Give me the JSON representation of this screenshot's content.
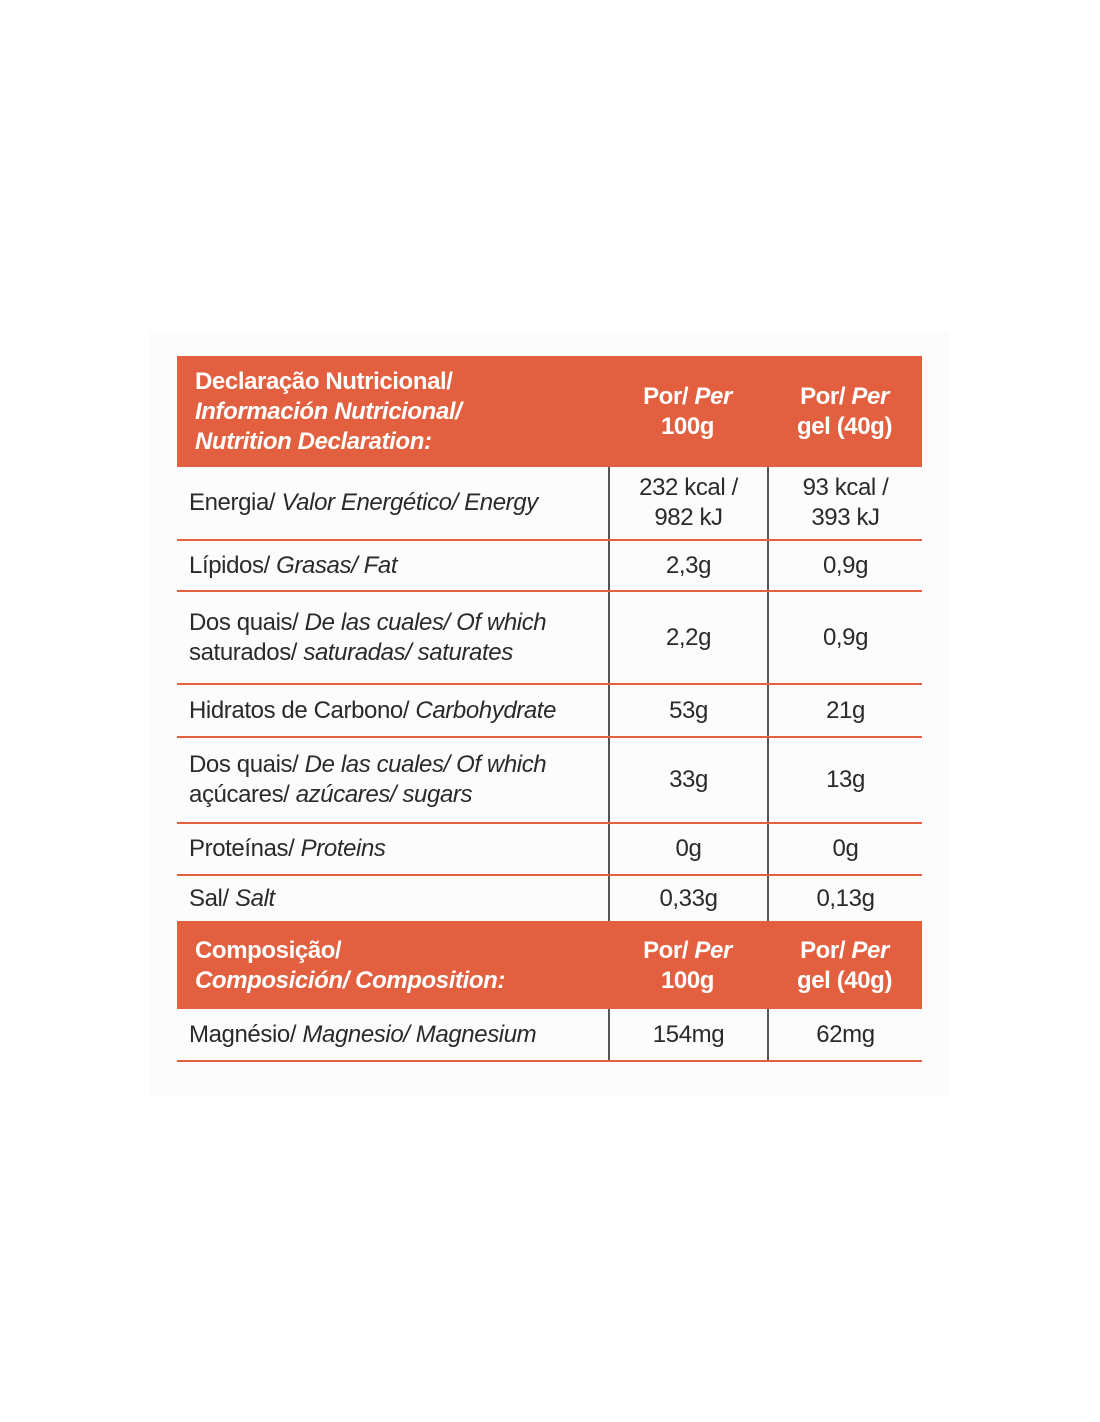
{
  "table": {
    "sections": [
      {
        "header": {
          "label": [
            [
              {
                "text": "Declaração Nutricional/",
                "italic": false
              }
            ],
            [
              {
                "text": "Información Nutricional/",
                "italic": true
              }
            ],
            [
              {
                "text": "Nutrition Declaration:",
                "italic": true
              }
            ]
          ],
          "columns": [
            [
              [
                {
                  "text": "Por/ ",
                  "italic": false
                },
                {
                  "text": "Per",
                  "italic": true
                }
              ],
              [
                {
                  "text": "100g",
                  "italic": false
                }
              ]
            ],
            [
              [
                {
                  "text": "Por/ ",
                  "italic": false
                },
                {
                  "text": "Per",
                  "italic": true
                }
              ],
              [
                {
                  "text": "gel (40g)",
                  "italic": false
                }
              ]
            ]
          ]
        },
        "rows": [
          {
            "label": [
              [
                {
                  "text": "Energia/ ",
                  "italic": false
                },
                {
                  "text": "Valor Energético/ Energy",
                  "italic": true
                }
              ]
            ],
            "values": [
              [
                "232 kcal /",
                "982 kJ"
              ],
              [
                "93 kcal /",
                "393 kJ"
              ]
            ]
          },
          {
            "label": [
              [
                {
                  "text": "Lípidos/ ",
                  "italic": false
                },
                {
                  "text": "Grasas/ Fat",
                  "italic": true
                }
              ]
            ],
            "values": [
              [
                "2,3g"
              ],
              [
                "0,9g"
              ]
            ]
          },
          {
            "label": [
              [
                {
                  "text": "Dos quais/ ",
                  "italic": false
                },
                {
                  "text": "De las cuales/ Of which",
                  "italic": true
                }
              ],
              [
                {
                  "text": "saturados/ ",
                  "italic": false
                },
                {
                  "text": "saturadas/ saturates",
                  "italic": true
                }
              ]
            ],
            "values": [
              [
                "2,2g"
              ],
              [
                "0,9g"
              ]
            ]
          },
          {
            "label": [
              [
                {
                  "text": "Hidratos de Carbono/ ",
                  "italic": false
                },
                {
                  "text": "Carbohydrate",
                  "italic": true
                }
              ]
            ],
            "values": [
              [
                "53g"
              ],
              [
                "21g"
              ]
            ]
          },
          {
            "label": [
              [
                {
                  "text": "Dos quais/ ",
                  "italic": false
                },
                {
                  "text": "De las cuales/ Of which",
                  "italic": true
                }
              ],
              [
                {
                  "text": "açúcares/ ",
                  "italic": false
                },
                {
                  "text": "azúcares/ sugars",
                  "italic": true
                }
              ]
            ],
            "values": [
              [
                "33g"
              ],
              [
                "13g"
              ]
            ]
          },
          {
            "label": [
              [
                {
                  "text": "Proteínas/ ",
                  "italic": false
                },
                {
                  "text": "Proteins",
                  "italic": true
                }
              ]
            ],
            "values": [
              [
                "0g"
              ],
              [
                "0g"
              ]
            ]
          },
          {
            "label": [
              [
                {
                  "text": "Sal/ ",
                  "italic": false
                },
                {
                  "text": "Salt",
                  "italic": true
                }
              ]
            ],
            "values": [
              [
                "0,33g"
              ],
              [
                "0,13g"
              ]
            ]
          }
        ]
      },
      {
        "header": {
          "label": [
            [
              {
                "text": "Composição/",
                "italic": false
              }
            ],
            [
              {
                "text": "Composición/ Composition:",
                "italic": true
              }
            ]
          ],
          "columns": [
            [
              [
                {
                  "text": "Por/ ",
                  "italic": false
                },
                {
                  "text": "Per",
                  "italic": true
                }
              ],
              [
                {
                  "text": "100g",
                  "italic": false
                }
              ]
            ],
            [
              [
                {
                  "text": "Por/ ",
                  "italic": false
                },
                {
                  "text": "Per",
                  "italic": true
                }
              ],
              [
                {
                  "text": "gel (40g)",
                  "italic": false
                }
              ]
            ]
          ]
        },
        "rows": [
          {
            "label": [
              [
                {
                  "text": "Magnésio/ ",
                  "italic": false
                },
                {
                  "text": "Magnesio/ Magnesium",
                  "italic": true
                }
              ]
            ],
            "values": [
              [
                "154mg"
              ],
              [
                "62mg"
              ]
            ]
          }
        ]
      }
    ]
  }
}
